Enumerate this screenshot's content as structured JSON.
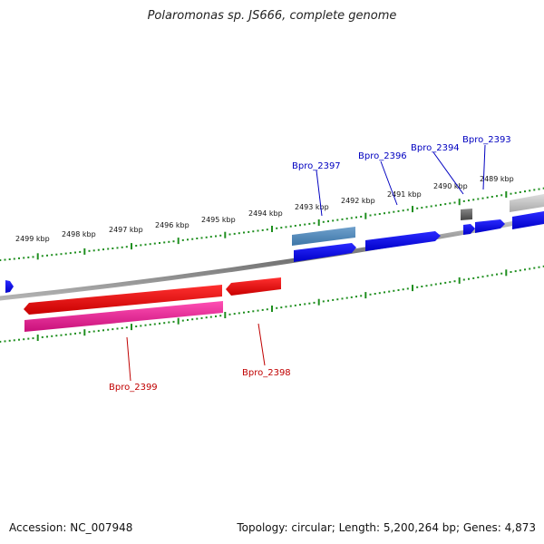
{
  "title": "Polaromonas sp. JS666, complete genome",
  "footer": {
    "accession": "Accession: NC_007948",
    "stats": "Topology: circular; Length: 5,200,264 bp; Genes: 4,873"
  },
  "colors": {
    "backbone": "#7a7a7a",
    "ticks": "#1f8f1f",
    "forward_gene": "#0000ee",
    "forward_gene_pale": "#4a86b8",
    "reverse_gene": "#ee0000",
    "reverse_gene_pink": "#e0148c",
    "forward_label": "#0000c0",
    "reverse_label": "#c00000",
    "grey_feature": "#666666",
    "light_grey_feature": "#bbbbbb"
  },
  "kbp_labels": [
    "2499 kbp",
    "2498 kbp",
    "2497 kbp",
    "2496 kbp",
    "2495 kbp",
    "2494 kbp",
    "2493 kbp",
    "2492 kbp",
    "2491 kbp",
    "2490 kbp",
    "2489 kbp"
  ],
  "gene_labels": {
    "forward": [
      "Bpro_2397",
      "Bpro_2396",
      "Bpro_2394",
      "Bpro_2393"
    ],
    "reverse": [
      "Bpro_2399",
      "Bpro_2398"
    ]
  }
}
